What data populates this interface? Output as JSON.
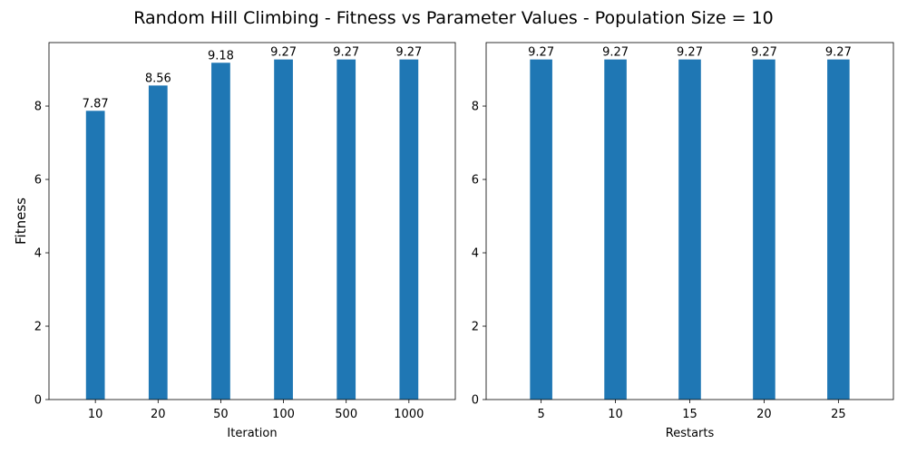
{
  "figure": {
    "title": "Random Hill Climbing - Fitness vs Parameter Values - Population Size = 10"
  },
  "chart_data": [
    {
      "type": "bar",
      "categories": [
        "10",
        "20",
        "50",
        "100",
        "500",
        "1000"
      ],
      "values": [
        7.87,
        8.56,
        9.18,
        9.27,
        9.27,
        9.27
      ],
      "data_labels": [
        "7.87",
        "8.56",
        "9.18",
        "9.27",
        "9.27",
        "9.27"
      ],
      "xlabel": "Iteration",
      "ylabel": "Fitness",
      "ylim": [
        0,
        9.73
      ],
      "yticks": [
        0,
        2,
        4,
        6,
        8
      ],
      "grid": false,
      "color": "#1f77b4"
    },
    {
      "type": "bar",
      "categories": [
        "5",
        "10",
        "15",
        "20",
        "25"
      ],
      "values": [
        9.27,
        9.27,
        9.27,
        9.27,
        9.27
      ],
      "data_labels": [
        "9.27",
        "9.27",
        "9.27",
        "9.27",
        "9.27"
      ],
      "xlabel": "Restarts",
      "ylabel": "",
      "ylim": [
        0,
        9.73
      ],
      "yticks": [
        0,
        2,
        4,
        6,
        8
      ],
      "grid": false,
      "color": "#1f77b4"
    }
  ]
}
